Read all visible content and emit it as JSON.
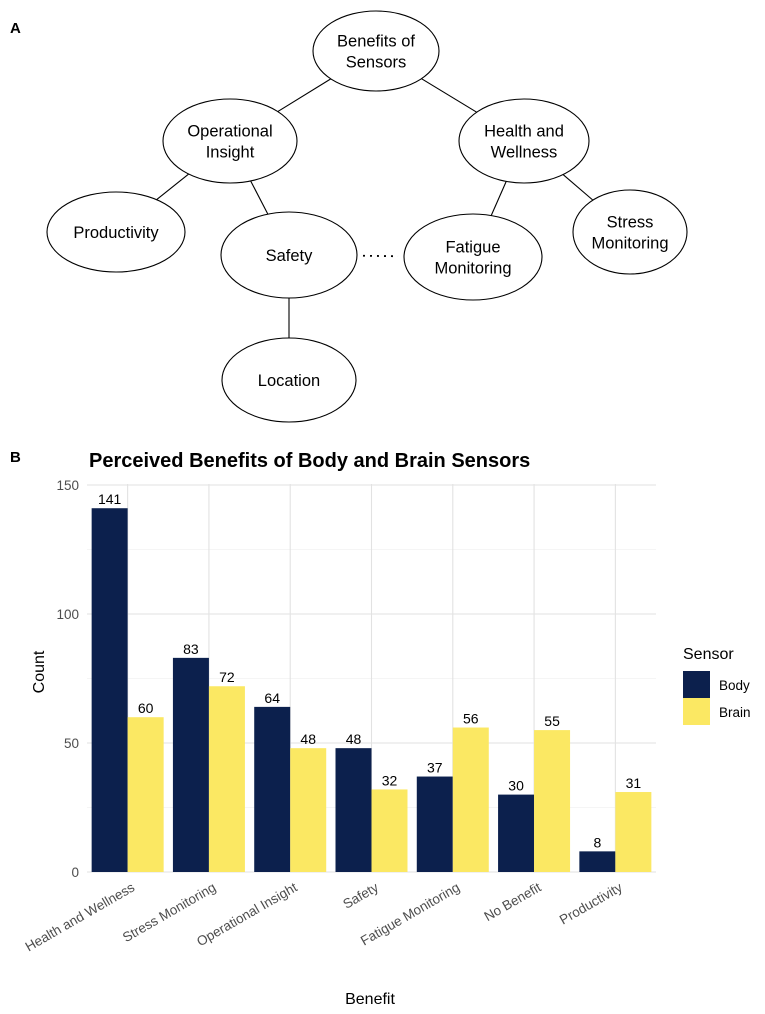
{
  "panel_a": {
    "label": "A",
    "nodes": [
      {
        "id": "root",
        "lines": [
          "Benefits of",
          "Sensors"
        ]
      },
      {
        "id": "operational",
        "lines": [
          "Operational",
          "Insight"
        ]
      },
      {
        "id": "health",
        "lines": [
          "Health and",
          "Wellness"
        ]
      },
      {
        "id": "productivity",
        "lines": [
          "Productivity"
        ]
      },
      {
        "id": "safety",
        "lines": [
          "Safety"
        ]
      },
      {
        "id": "fatigue",
        "lines": [
          "Fatigue",
          "Monitoring"
        ]
      },
      {
        "id": "stress",
        "lines": [
          "Stress",
          "Monitoring"
        ]
      },
      {
        "id": "location",
        "lines": [
          "Location"
        ]
      }
    ],
    "edges": [
      {
        "from": "root",
        "to": "operational",
        "style": "solid"
      },
      {
        "from": "root",
        "to": "health",
        "style": "solid"
      },
      {
        "from": "operational",
        "to": "productivity",
        "style": "solid"
      },
      {
        "from": "operational",
        "to": "safety",
        "style": "solid"
      },
      {
        "from": "health",
        "to": "fatigue",
        "style": "solid"
      },
      {
        "from": "health",
        "to": "stress",
        "style": "solid"
      },
      {
        "from": "safety",
        "to": "location",
        "style": "solid"
      },
      {
        "from": "safety",
        "to": "fatigue",
        "style": "dotted"
      }
    ]
  },
  "panel_b": {
    "label": "B"
  },
  "chart_data": {
    "type": "bar",
    "title": "Perceived Benefits of Body and Brain Sensors",
    "xlabel": "Benefit",
    "ylabel": "Count",
    "ylim": [
      0,
      150
    ],
    "yticks": [
      0,
      50,
      100,
      150
    ],
    "grid": true,
    "legend": {
      "title": "Sensor",
      "position": "right"
    },
    "categories": [
      "Health and Wellness",
      "Stress Monitoring",
      "Operational Insight",
      "Safety",
      "Fatigue Monitoring",
      "No Benefit",
      "Productivity"
    ],
    "series": [
      {
        "name": "Body",
        "color": "#0c204d",
        "values": [
          141,
          83,
          64,
          48,
          37,
          30,
          8
        ]
      },
      {
        "name": "Brain",
        "color": "#fbe863",
        "values": [
          60,
          72,
          48,
          32,
          56,
          55,
          31
        ]
      }
    ]
  }
}
